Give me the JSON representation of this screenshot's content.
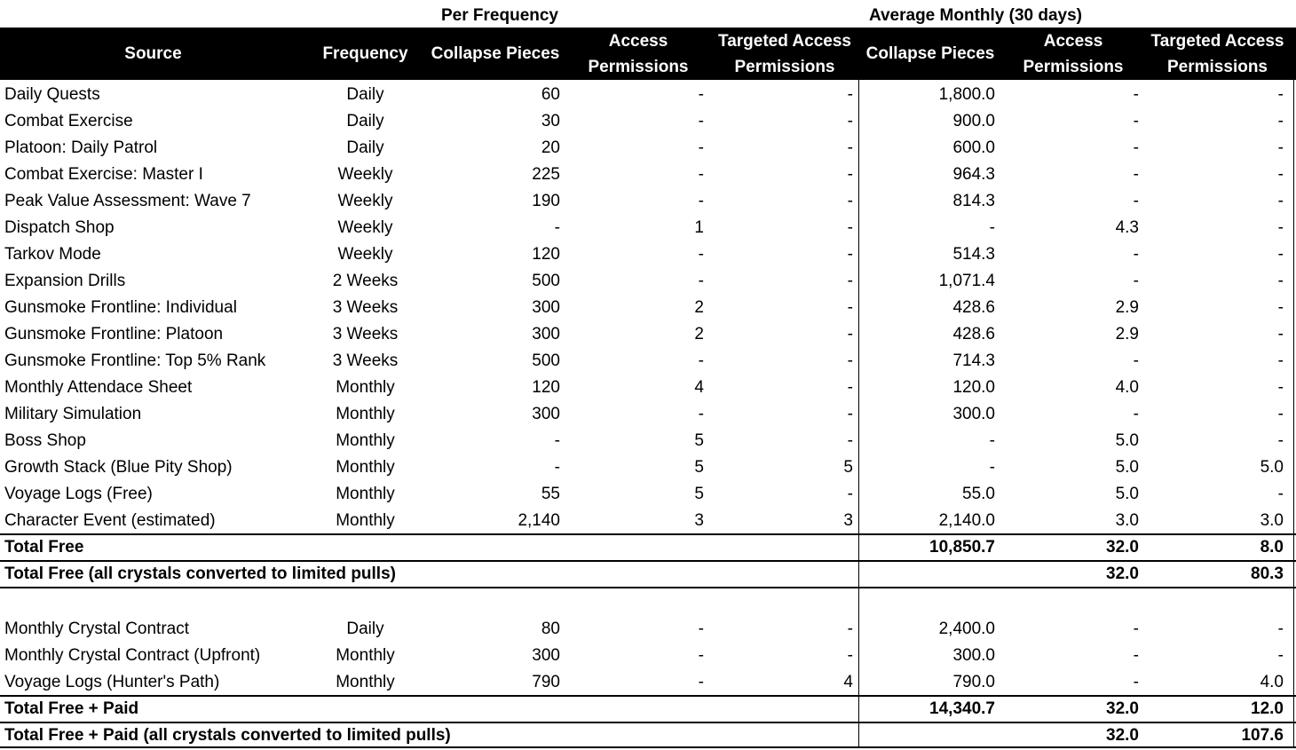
{
  "group_headers": {
    "per_frequency": "Per Frequency",
    "average_monthly": "Average Monthly (30 days)"
  },
  "columns": [
    "Source",
    "Frequency",
    "Collapse Pieces",
    "Access\nPermissions",
    "Targeted Access\nPermissions",
    "Collapse Pieces",
    "Access\nPermissions",
    "Targeted Access\nPermissions"
  ],
  "free_rows": [
    [
      "Daily Quests",
      "Daily",
      "60",
      "-",
      "-",
      "1,800.0",
      "-",
      "-"
    ],
    [
      "Combat Exercise",
      "Daily",
      "30",
      "-",
      "-",
      "900.0",
      "-",
      "-"
    ],
    [
      "Platoon: Daily Patrol",
      "Daily",
      "20",
      "-",
      "-",
      "600.0",
      "-",
      "-"
    ],
    [
      "Combat Exercise: Master I",
      "Weekly",
      "225",
      "-",
      "-",
      "964.3",
      "-",
      "-"
    ],
    [
      "Peak Value Assessment: Wave 7",
      "Weekly",
      "190",
      "-",
      "-",
      "814.3",
      "-",
      "-"
    ],
    [
      "Dispatch Shop",
      "Weekly",
      "-",
      "1",
      "-",
      "-",
      "4.3",
      "-"
    ],
    [
      "Tarkov Mode",
      "Weekly",
      "120",
      "-",
      "-",
      "514.3",
      "-",
      "-"
    ],
    [
      "Expansion Drills",
      "2 Weeks",
      "500",
      "-",
      "-",
      "1,071.4",
      "-",
      "-"
    ],
    [
      "Gunsmoke Frontline: Individual",
      "3 Weeks",
      "300",
      "2",
      "-",
      "428.6",
      "2.9",
      "-"
    ],
    [
      "Gunsmoke Frontline: Platoon",
      "3 Weeks",
      "300",
      "2",
      "-",
      "428.6",
      "2.9",
      "-"
    ],
    [
      "Gunsmoke Frontline: Top 5% Rank",
      "3 Weeks",
      "500",
      "-",
      "-",
      "714.3",
      "-",
      "-"
    ],
    [
      "Monthly Attendace Sheet",
      "Monthly",
      "120",
      "4",
      "-",
      "120.0",
      "4.0",
      "-"
    ],
    [
      "Military Simulation",
      "Monthly",
      "300",
      "-",
      "-",
      "300.0",
      "-",
      "-"
    ],
    [
      "Boss Shop",
      "Monthly",
      "-",
      "5",
      "-",
      "-",
      "5.0",
      "-"
    ],
    [
      "Growth Stack (Blue Pity Shop)",
      "Monthly",
      "-",
      "5",
      "5",
      "-",
      "5.0",
      "5.0"
    ],
    [
      "Voyage Logs (Free)",
      "Monthly",
      "55",
      "5",
      "-",
      "55.0",
      "5.0",
      "-"
    ],
    [
      "Character Event (estimated)",
      "Monthly",
      "2,140",
      "3",
      "3",
      "2,140.0",
      "3.0",
      "3.0"
    ]
  ],
  "free_totals": [
    {
      "label": "Total Free",
      "collapse": "10,850.7",
      "access": "32.0",
      "targeted": "8.0"
    },
    {
      "label": "Total Free (all crystals converted to limited pulls)",
      "collapse": "",
      "access": "32.0",
      "targeted": "80.3"
    }
  ],
  "paid_rows": [
    [
      "Monthly Crystal Contract",
      "Daily",
      "80",
      "-",
      "-",
      "2,400.0",
      "-",
      "-"
    ],
    [
      "Monthly Crystal Contract (Upfront)",
      "Monthly",
      "300",
      "-",
      "-",
      "300.0",
      "-",
      "-"
    ],
    [
      "Voyage Logs (Hunter's Path)",
      "Monthly",
      "790",
      "-",
      "4",
      "790.0",
      "-",
      "4.0"
    ]
  ],
  "paid_totals": [
    {
      "label": "Total Free + Paid",
      "collapse": "14,340.7",
      "access": "32.0",
      "targeted": "12.0"
    },
    {
      "label": "Total Free + Paid (all crystals converted to limited pulls)",
      "collapse": "",
      "access": "32.0",
      "targeted": "107.6"
    }
  ]
}
